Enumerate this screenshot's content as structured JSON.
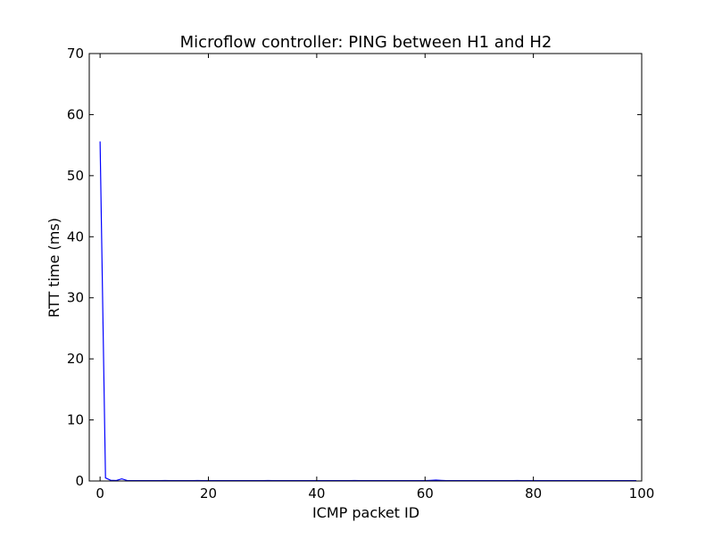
{
  "chart_data": {
    "type": "line",
    "title": "Microflow controller: PING between H1 and H2",
    "xlabel": "ICMP packet ID",
    "ylabel": "RTT time (ms)",
    "xlim": [
      -2,
      100
    ],
    "ylim": [
      0,
      70
    ],
    "xticks": [
      0,
      20,
      40,
      60,
      80,
      100
    ],
    "yticks": [
      0,
      10,
      20,
      30,
      40,
      50,
      60,
      70
    ],
    "grid": false,
    "series": [
      {
        "color": "#0000ff",
        "x": [
          0,
          1,
          2,
          3,
          4,
          5,
          6,
          7,
          8,
          9,
          10,
          11,
          12,
          13,
          14,
          15,
          16,
          17,
          18,
          19,
          20,
          21,
          22,
          23,
          24,
          25,
          26,
          27,
          28,
          29,
          30,
          31,
          32,
          33,
          34,
          35,
          36,
          37,
          38,
          39,
          40,
          41,
          42,
          43,
          44,
          45,
          46,
          47,
          48,
          49,
          50,
          51,
          52,
          53,
          54,
          55,
          56,
          57,
          58,
          59,
          60,
          61,
          62,
          63,
          64,
          65,
          66,
          67,
          68,
          69,
          70,
          71,
          72,
          73,
          74,
          75,
          76,
          77,
          78,
          79,
          80,
          81,
          82,
          83,
          84,
          85,
          86,
          87,
          88,
          89,
          90,
          91,
          92,
          93,
          94,
          95,
          96,
          97,
          98,
          99
        ],
        "y": [
          55.6,
          0.5,
          0.1,
          0.08,
          0.35,
          0.08,
          0.06,
          0.05,
          0.06,
          0.05,
          0.05,
          0.05,
          0.08,
          0.05,
          0.06,
          0.05,
          0.05,
          0.05,
          0.07,
          0.06,
          0.05,
          0.05,
          0.06,
          0.05,
          0.05,
          0.05,
          0.05,
          0.06,
          0.05,
          0.05,
          0.05,
          0.07,
          0.05,
          0.05,
          0.05,
          0.05,
          0.05,
          0.05,
          0.05,
          0.05,
          0.05,
          0.05,
          0.05,
          0.05,
          0.05,
          0.06,
          0.05,
          0.07,
          0.05,
          0.05,
          0.05,
          0.06,
          0.05,
          0.05,
          0.05,
          0.05,
          0.05,
          0.05,
          0.05,
          0.05,
          0.05,
          0.1,
          0.15,
          0.1,
          0.05,
          0.05,
          0.05,
          0.05,
          0.05,
          0.05,
          0.05,
          0.05,
          0.05,
          0.05,
          0.05,
          0.05,
          0.05,
          0.07,
          0.05,
          0.05,
          0.05,
          0.05,
          0.05,
          0.05,
          0.05,
          0.05,
          0.05,
          0.05,
          0.05,
          0.05,
          0.05,
          0.05,
          0.05,
          0.05,
          0.05,
          0.05,
          0.05,
          0.05,
          0.05,
          0.05
        ]
      }
    ]
  }
}
